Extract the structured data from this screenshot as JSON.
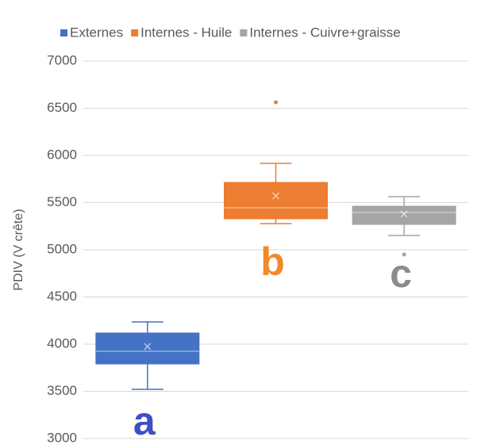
{
  "chart_data": {
    "type": "box",
    "y_label": "PDIV (V crête)",
    "ylim": [
      3000,
      7000
    ],
    "yticks": [
      3000,
      3500,
      4000,
      4500,
      5000,
      5500,
      6000,
      6500,
      7000
    ],
    "grid": true,
    "legend": "top",
    "series": [
      {
        "name": "Externes",
        "color": "#4472c4",
        "min": 3521,
        "q1": 3790,
        "median": 3924,
        "q3": 4118,
        "max": 4235,
        "mean": 3975,
        "outliers": []
      },
      {
        "name": "Internes - Huile",
        "color": "#ed7d31",
        "min": 5277,
        "q1": 5328,
        "median": 5445,
        "q3": 5714,
        "max": 5916,
        "mean": 5571,
        "outliers": [
          6563
        ]
      },
      {
        "name": "Internes - Cuivre+graisse",
        "color": "#a5a5a5",
        "min": 5151,
        "q1": 5269,
        "median": 5395,
        "q3": 5462,
        "max": 5563,
        "mean": 5378,
        "outliers": [
          4950
        ]
      }
    ],
    "annotations": [
      {
        "text": "a",
        "color": "#3f4fc4"
      },
      {
        "text": "b",
        "color": "#f08a2a"
      },
      {
        "text": "c",
        "color": "#8c8c8c"
      }
    ]
  }
}
